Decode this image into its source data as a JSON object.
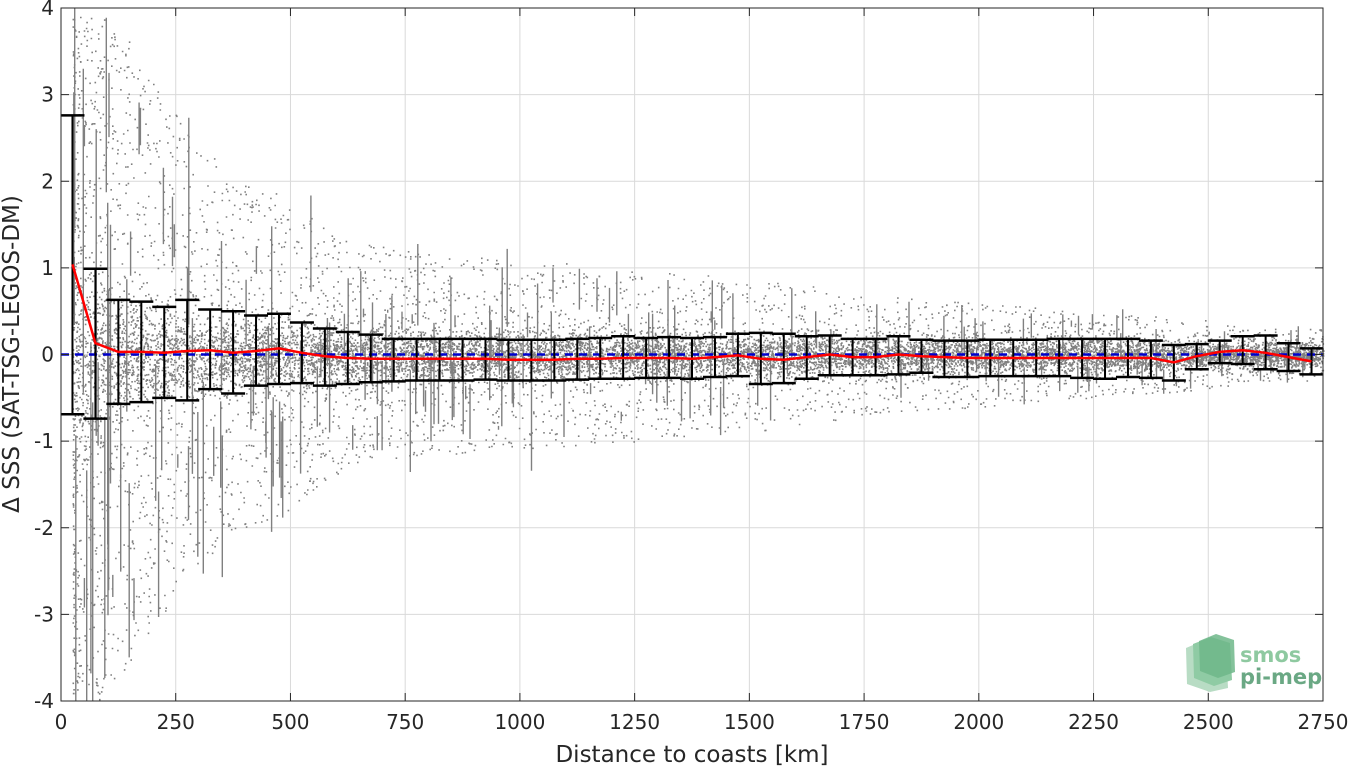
{
  "chart_data": {
    "type": "scatter",
    "title": "",
    "xlabel": "Distance to coasts [km]",
    "ylabel": "Δ SSS (SAT-TSG-LEGOS-DM)",
    "xlim": [
      0,
      2750
    ],
    "ylim": [
      -4,
      4
    ],
    "xticks": [
      0,
      250,
      500,
      750,
      1000,
      1250,
      1500,
      1750,
      2000,
      2250,
      2500,
      2750
    ],
    "yticks": [
      -4,
      -3,
      -2,
      -1,
      0,
      1,
      2,
      3,
      4
    ],
    "grid": true,
    "legend": "none",
    "zero_line": {
      "y": 0,
      "style": "dashed",
      "color": "#0000cc"
    },
    "scatter_cloud": {
      "color": "#808080",
      "spread_profile": {
        "x": [
          0,
          25,
          50,
          100,
          150,
          200,
          300,
          400,
          500,
          600,
          750,
          1000,
          1250,
          1500,
          1750,
          2000,
          2250,
          2500,
          2600,
          2750
        ],
        "dense_half_width": [
          1.6,
          1.9,
          1.6,
          1.1,
          0.85,
          0.75,
          0.6,
          0.55,
          0.5,
          0.45,
          0.38,
          0.36,
          0.33,
          0.33,
          0.3,
          0.28,
          0.28,
          0.2,
          0.2,
          0.2
        ],
        "sparse_half_width": [
          4,
          4,
          4,
          4,
          3.6,
          3.2,
          2.4,
          2.0,
          1.8,
          1.4,
          1.2,
          1.1,
          1.0,
          0.9,
          0.7,
          0.6,
          0.5,
          0.4,
          0.3,
          0.3
        ]
      }
    },
    "series": [
      {
        "type": "line",
        "color": "#ff0000",
        "x": [
          25,
          75,
          125,
          175,
          225,
          275,
          325,
          375,
          425,
          475,
          525,
          575,
          625,
          675,
          725,
          775,
          825,
          875,
          925,
          975,
          1025,
          1075,
          1125,
          1175,
          1225,
          1275,
          1325,
          1375,
          1425,
          1475,
          1525,
          1575,
          1625,
          1675,
          1725,
          1775,
          1825,
          1875,
          1925,
          1975,
          2025,
          2075,
          2125,
          2175,
          2225,
          2275,
          2325,
          2375,
          2425,
          2475,
          2525,
          2575,
          2625,
          2675,
          2725
        ],
        "values": [
          1.04,
          0.13,
          0.03,
          0.03,
          0.02,
          0.04,
          0.05,
          0.02,
          0.04,
          0.07,
          0.02,
          -0.02,
          -0.04,
          -0.05,
          -0.05,
          -0.05,
          -0.05,
          -0.05,
          -0.05,
          -0.06,
          -0.06,
          -0.06,
          -0.05,
          -0.05,
          -0.04,
          -0.04,
          -0.04,
          -0.05,
          -0.03,
          -0.01,
          -0.05,
          -0.06,
          -0.03,
          0.0,
          -0.03,
          -0.03,
          0.0,
          -0.02,
          -0.03,
          -0.04,
          -0.04,
          -0.04,
          -0.04,
          -0.04,
          -0.04,
          -0.04,
          -0.04,
          -0.04,
          -0.09,
          -0.02,
          0.03,
          0.05,
          0.02,
          -0.03,
          -0.08
        ]
      },
      {
        "type": "errorbar",
        "color": "#000000",
        "x": [
          25,
          75,
          125,
          175,
          225,
          275,
          325,
          375,
          425,
          475,
          525,
          575,
          625,
          675,
          725,
          775,
          825,
          875,
          925,
          975,
          1025,
          1075,
          1125,
          1175,
          1225,
          1275,
          1325,
          1375,
          1425,
          1475,
          1525,
          1575,
          1625,
          1675,
          1725,
          1775,
          1825,
          1875,
          1925,
          1975,
          2025,
          2075,
          2125,
          2175,
          2225,
          2275,
          2325,
          2375,
          2425,
          2475,
          2525,
          2575,
          2625,
          2675,
          2725
        ],
        "upper": [
          2.76,
          0.99,
          0.63,
          0.61,
          0.55,
          0.63,
          0.52,
          0.5,
          0.45,
          0.47,
          0.37,
          0.3,
          0.26,
          0.23,
          0.18,
          0.18,
          0.18,
          0.18,
          0.18,
          0.17,
          0.17,
          0.17,
          0.18,
          0.19,
          0.21,
          0.19,
          0.2,
          0.19,
          0.2,
          0.24,
          0.25,
          0.24,
          0.21,
          0.22,
          0.18,
          0.18,
          0.21,
          0.17,
          0.16,
          0.16,
          0.17,
          0.17,
          0.17,
          0.18,
          0.18,
          0.18,
          0.18,
          0.16,
          0.11,
          0.12,
          0.16,
          0.21,
          0.22,
          0.13,
          0.07
        ],
        "lower": [
          -0.69,
          -0.74,
          -0.57,
          -0.55,
          -0.5,
          -0.53,
          -0.4,
          -0.45,
          -0.36,
          -0.34,
          -0.33,
          -0.36,
          -0.34,
          -0.32,
          -0.31,
          -0.3,
          -0.3,
          -0.3,
          -0.29,
          -0.3,
          -0.3,
          -0.3,
          -0.29,
          -0.28,
          -0.28,
          -0.27,
          -0.27,
          -0.28,
          -0.26,
          -0.25,
          -0.34,
          -0.33,
          -0.28,
          -0.24,
          -0.24,
          -0.24,
          -0.23,
          -0.21,
          -0.26,
          -0.26,
          -0.25,
          -0.25,
          -0.25,
          -0.25,
          -0.27,
          -0.28,
          -0.26,
          -0.27,
          -0.3,
          -0.17,
          -0.1,
          -0.11,
          -0.17,
          -0.19,
          -0.23
        ]
      }
    ]
  },
  "logo": {
    "line1": "smos",
    "line2": "pi-mep"
  }
}
